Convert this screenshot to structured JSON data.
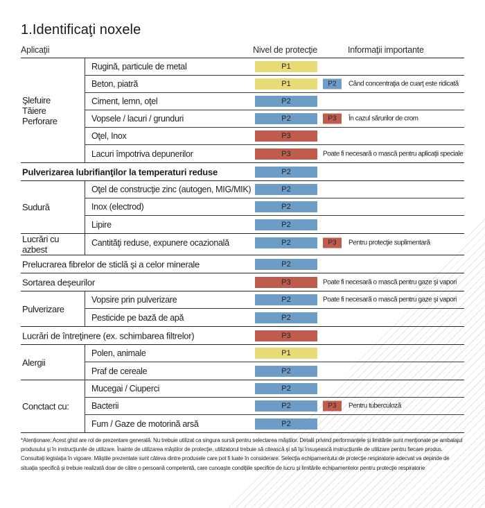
{
  "page": {
    "title": "1.Identificaţi noxele",
    "columns": {
      "applications": "Aplicaţii",
      "protection_level": "Nivel de protecţie",
      "important_info": "Informaţii importante"
    }
  },
  "colors": {
    "p1_yellow": "#e8da74",
    "p2_blue": "#6d9cc6",
    "p3_red": "#c05c4c",
    "row_line": "#3a3a3a",
    "group_line": "#242424"
  },
  "groups": [
    {
      "category": "Şlefuire\nTăiere\nPerforare",
      "rows": [
        {
          "label": "Rugină, particule de metal",
          "level": "P1"
        },
        {
          "label": "Beton, piatră",
          "level": "P1",
          "extra": "P2",
          "note": "Când concentraţia de cuarţ este ridicată"
        },
        {
          "label": "Ciment, lemn, oţel",
          "level": "P2"
        },
        {
          "label": "Vopsele / lacuri / grunduri",
          "level": "P2",
          "extra": "P3",
          "note": "În cazul sărurilor de crom"
        },
        {
          "label": "Oţel, Inox",
          "level": "P3"
        },
        {
          "label": "Lacuri împotriva depunerilor",
          "level": "P3",
          "note": "Poate fi necesară o mască pentru aplicaţii speciale"
        }
      ]
    },
    {
      "label": "Pulverizarea lubrifianţilor la temperaturi reduse",
      "level": "P2"
    },
    {
      "category": "Sudură",
      "rows": [
        {
          "label": "Oţel de construcţie zinc (autogen, MIG/MIK)",
          "level": "P2"
        },
        {
          "label": "Inox (electrod)",
          "level": "P2"
        },
        {
          "label": "Lipire",
          "level": "P2"
        }
      ]
    },
    {
      "category": "Lucrări cu azbest",
      "rows": [
        {
          "label": "Cantităţi reduse, expunere ocazională",
          "level": "P2",
          "extra": "P3",
          "note": "Pentru protecţie suplimentară"
        }
      ]
    },
    {
      "label": "Prelucrarea fibrelor de sticlă şi a celor minerale",
      "level": "P2"
    },
    {
      "label": "Sortarea deşeurilor",
      "level": "P3",
      "note": "Poate fi necesară o mască pentru gaze şi vapori"
    },
    {
      "category": "Pulverizare",
      "rows": [
        {
          "label": "Vopsire prin pulverizare",
          "level": "P2",
          "note": "Poate fi necesară o mască pentru gaze şi vapori"
        },
        {
          "label": "Pesticide pe bază de apă",
          "level": "P2"
        }
      ]
    },
    {
      "label": "Lucrări de întreţinere (ex. schimbarea filtrelor)",
      "level": "P3"
    },
    {
      "category": "Alergii",
      "rows": [
        {
          "label": "Polen, animale",
          "level": "P1"
        },
        {
          "label": "Praf de cereale",
          "level": "P2"
        }
      ]
    },
    {
      "category": "Conctact cu:",
      "rows": [
        {
          "label": "Mucegai / Ciuperci",
          "level": "P2"
        },
        {
          "label": "Bacterii",
          "level": "P2",
          "extra": "P3",
          "note": "Pentru tuberculoză"
        },
        {
          "label": "Fum / Gaze de motorină arsă",
          "level": "P2"
        }
      ]
    }
  ],
  "footnote": "*Atenţionare: Acest ghid are rol de prezentare generală. Nu trebuie utilizat ca singura sursă pentru selectarea măştilor. Detalii privind performanţele şi limitările sunt menţionate pe ambalajul produsului şi în instrucţiunile de utilizare. Înainte de utilizarea măştilor de protecţie, utilizatorul trebuie să citească şi să îşi însuşească instrucţiunile de utilizare pentru fiecare produs. Consultaţi legislaţia în vigoare. Măştile prezentate sunt câteva dintre produsele care pot fi luate în considerare. Selecţia echipamentului de protecţie respiratorie adecvat va depinde de situaţia specifică şi trebuie realizată doar de către o persoană competentă, care cunoaşte condiţiile specifice de lucru şi limitările echipamentelor pentru protecţie respiratorie"
}
